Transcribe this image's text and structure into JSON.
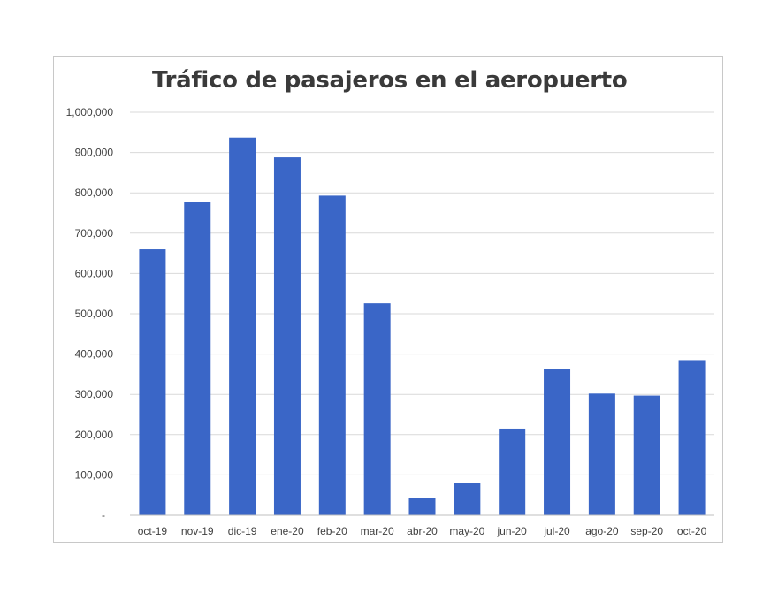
{
  "chart_data": {
    "type": "bar",
    "title": "Tráfico de pasajeros en el aeropuerto",
    "xlabel": "",
    "ylabel": "",
    "categories": [
      "oct-19",
      "nov-19",
      "dic-19",
      "ene-20",
      "feb-20",
      "mar-20",
      "abr-20",
      "may-20",
      "jun-20",
      "jul-20",
      "ago-20",
      "sep-20",
      "oct-20"
    ],
    "values": [
      660000,
      778000,
      937000,
      888000,
      793000,
      526000,
      42000,
      79000,
      215000,
      363000,
      302000,
      297000,
      385000
    ],
    "ylim": [
      0,
      1000000
    ],
    "y_ticks": [
      0,
      100000,
      200000,
      300000,
      400000,
      500000,
      600000,
      700000,
      800000,
      900000,
      1000000
    ],
    "y_tick_labels": [
      "-",
      "100,000",
      "200,000",
      "300,000",
      "400,000",
      "500,000",
      "600,000",
      "700,000",
      "800,000",
      "900,000",
      "1,000,000"
    ],
    "grid": true,
    "legend": "none",
    "bar_color": "#3a66c7"
  }
}
